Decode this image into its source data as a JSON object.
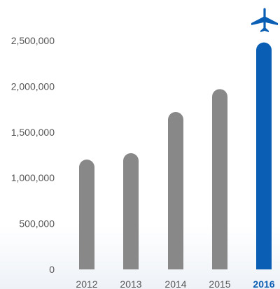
{
  "chart_data": {
    "type": "bar",
    "title": "",
    "xlabel": "",
    "ylabel": "",
    "categories": [
      "2012",
      "2013",
      "2014",
      "2015",
      "2016"
    ],
    "values": [
      1200000,
      1270000,
      1720000,
      1970000,
      2480000
    ],
    "ylim": [
      0,
      2500000
    ],
    "y_ticks": [
      "0",
      "500,000",
      "1,000,000",
      "1,500,000",
      "2,000,000",
      "2,500,000"
    ],
    "y_tick_values": [
      0,
      500000,
      1000000,
      1500000,
      2000000,
      2500000
    ],
    "grid": false,
    "highlight_category": "2016",
    "highlight_icon": "airplane-icon",
    "colors": {
      "bar": "#888888",
      "highlight": "#0a5fb4",
      "tick_text": "#555555"
    }
  }
}
